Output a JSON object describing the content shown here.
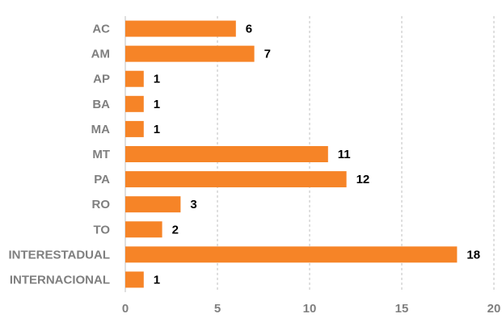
{
  "chart_data": {
    "type": "bar",
    "orientation": "horizontal",
    "categories": [
      "AC",
      "AM",
      "AP",
      "BA",
      "MA",
      "MT",
      "PA",
      "RO",
      "TO",
      "INTERESTADUAL",
      "INTERNACIONAL"
    ],
    "values": [
      6,
      7,
      1,
      1,
      1,
      11,
      12,
      3,
      2,
      18,
      1
    ],
    "data_labels": [
      "6",
      "7",
      "1",
      "1",
      "1",
      "11",
      "12",
      "3",
      "2",
      "18",
      "1"
    ],
    "title": "",
    "xlabel": "",
    "ylabel": "",
    "xlim": [
      0,
      20
    ],
    "xticks": [
      0,
      5,
      10,
      15,
      20
    ],
    "xtick_labels": [
      "0",
      "5",
      "10",
      "15",
      "20"
    ],
    "grid": "vertical dashed gridlines",
    "legend": "none",
    "colors": {
      "bar": "#f68427",
      "grid": "#bfbfbf",
      "axis": "#bfbfbf",
      "category_label": "#7f7f7f",
      "tick_label": "#7f7f7f",
      "data_label": "#000000"
    }
  }
}
